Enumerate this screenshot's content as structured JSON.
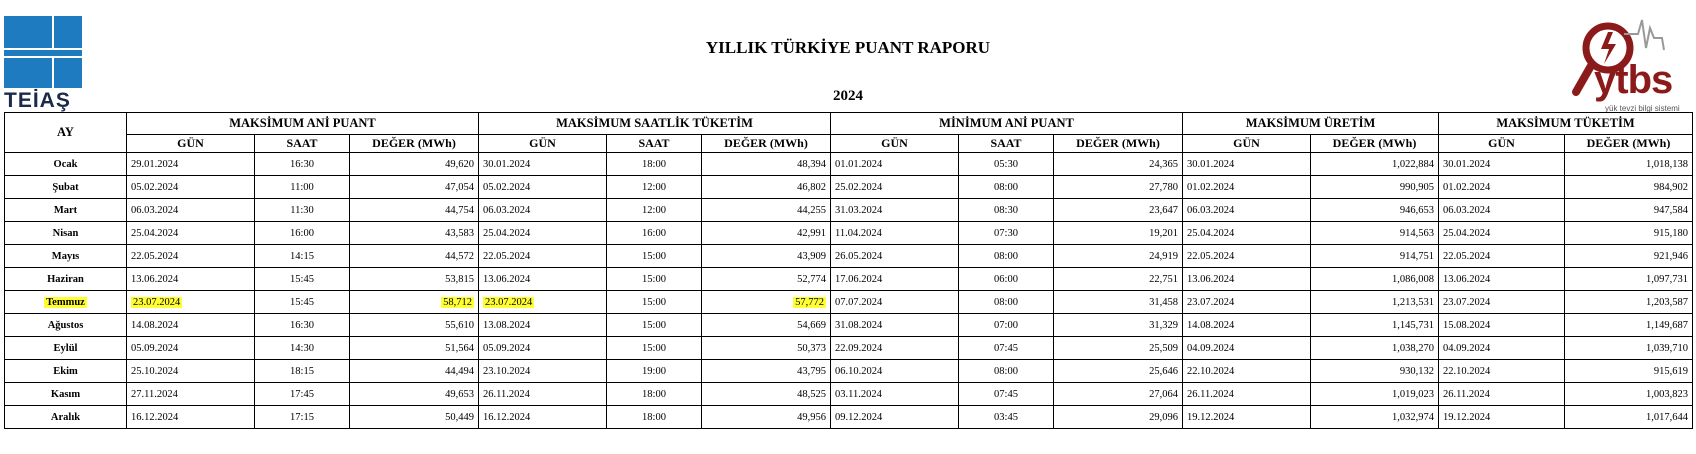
{
  "logo_left": {
    "text": "TEİAŞ",
    "color": "#1f7bbf"
  },
  "logo_right": {
    "text": "ytbs",
    "subtitle": "yük tevzi bilgi sistemi",
    "color": "#8b1a1a"
  },
  "title": "YILLIK TÜRKİYE PUANT RAPORU",
  "year": "2024",
  "table": {
    "ay_header": "AY",
    "groups": [
      "MAKSİMUM ANİ PUANT",
      "MAKSİMUM SAATLİK TÜKETİM",
      "MİNİMUM ANİ PUANT",
      "MAKSİMUM ÜRETİM",
      "MAKSİMUM TÜKETİM"
    ],
    "sub": {
      "gun": "GÜN",
      "saat": "SAAT",
      "deger": "DEĞER (MWh)"
    },
    "highlight_color": "#ffff33",
    "rows": [
      [
        "Ocak",
        "29.01.2024",
        "16:30",
        "49,620",
        "30.01.2024",
        "18:00",
        "48,394",
        "01.01.2024",
        "05:30",
        "24,365",
        "30.01.2024",
        "1,022,884",
        "30.01.2024",
        "1,018,138"
      ],
      [
        "Şubat",
        "05.02.2024",
        "11:00",
        "47,054",
        "05.02.2024",
        "12:00",
        "46,802",
        "25.02.2024",
        "08:00",
        "27,780",
        "01.02.2024",
        "990,905",
        "01.02.2024",
        "984,902"
      ],
      [
        "Mart",
        "06.03.2024",
        "11:30",
        "44,754",
        "06.03.2024",
        "12:00",
        "44,255",
        "31.03.2024",
        "08:30",
        "23,647",
        "06.03.2024",
        "946,653",
        "06.03.2024",
        "947,584"
      ],
      [
        "Nisan",
        "25.04.2024",
        "16:00",
        "43,583",
        "25.04.2024",
        "16:00",
        "42,991",
        "11.04.2024",
        "07:30",
        "19,201",
        "25.04.2024",
        "914,563",
        "25.04.2024",
        "915,180"
      ],
      [
        "Mayıs",
        "22.05.2024",
        "14:15",
        "44,572",
        "22.05.2024",
        "15:00",
        "43,909",
        "26.05.2024",
        "08:00",
        "24,919",
        "22.05.2024",
        "914,751",
        "22.05.2024",
        "921,946"
      ],
      [
        "Haziran",
        "13.06.2024",
        "15:45",
        "53,815",
        "13.06.2024",
        "15:00",
        "52,774",
        "17.06.2024",
        "06:00",
        "22,751",
        "13.06.2024",
        "1,086,008",
        "13.06.2024",
        "1,097,731"
      ],
      [
        "Temmuz",
        "23.07.2024",
        "15:45",
        "58,712",
        "23.07.2024",
        "15:00",
        "57,772",
        "07.07.2024",
        "08:00",
        "31,458",
        "23.07.2024",
        "1,213,531",
        "23.07.2024",
        "1,203,587"
      ],
      [
        "Ağustos",
        "14.08.2024",
        "16:30",
        "55,610",
        "13.08.2024",
        "15:00",
        "54,669",
        "31.08.2024",
        "07:00",
        "31,329",
        "14.08.2024",
        "1,145,731",
        "15.08.2024",
        "1,149,687"
      ],
      [
        "Eylül",
        "05.09.2024",
        "14:30",
        "51,564",
        "05.09.2024",
        "15:00",
        "50,373",
        "22.09.2024",
        "07:45",
        "25,509",
        "04.09.2024",
        "1,038,270",
        "04.09.2024",
        "1,039,710"
      ],
      [
        "Ekim",
        "25.10.2024",
        "18:15",
        "44,494",
        "23.10.2024",
        "19:00",
        "43,795",
        "06.10.2024",
        "08:00",
        "25,646",
        "22.10.2024",
        "930,132",
        "22.10.2024",
        "915,619"
      ],
      [
        "Kasım",
        "27.11.2024",
        "17:45",
        "49,653",
        "26.11.2024",
        "18:00",
        "48,525",
        "03.11.2024",
        "07:45",
        "27,064",
        "26.11.2024",
        "1,019,023",
        "26.11.2024",
        "1,003,823"
      ],
      [
        "Aralık",
        "16.12.2024",
        "17:15",
        "50,449",
        "16.12.2024",
        "18:00",
        "49,956",
        "09.12.2024",
        "03:45",
        "29,096",
        "19.12.2024",
        "1,032,974",
        "19.12.2024",
        "1,017,644"
      ]
    ],
    "highlighted_cells": [
      [
        6,
        0
      ],
      [
        6,
        1
      ],
      [
        6,
        3
      ],
      [
        6,
        4
      ],
      [
        6,
        6
      ]
    ]
  }
}
